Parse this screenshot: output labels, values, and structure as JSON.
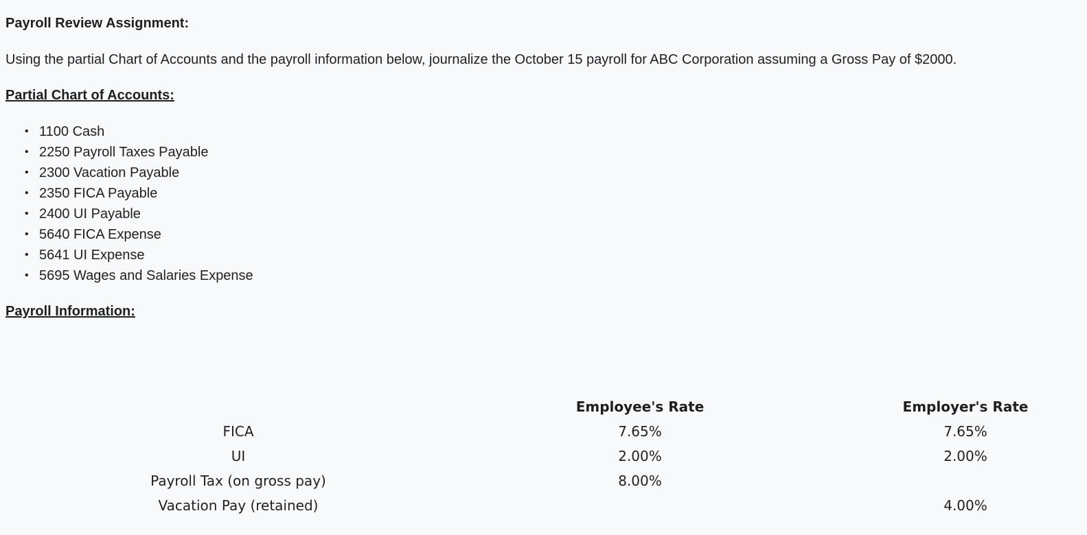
{
  "title": "Payroll Review Assignment:",
  "intro": "Using the partial Chart of Accounts and the payroll information below, journalize the October 15 payroll for ABC Corporation assuming a Gross Pay of $2000.",
  "chart_of_accounts": {
    "heading": "Partial Chart of Accounts:",
    "items": [
      "1100 Cash",
      "2250 Payroll Taxes Payable",
      "2300 Vacation Payable",
      "2350 FICA Payable",
      "2400 UI Payable",
      "5640 FICA Expense",
      "5641 UI Expense",
      "5695 Wages and Salaries Expense"
    ]
  },
  "payroll_info": {
    "heading": "Payroll Information:",
    "columns": [
      "",
      "Employee's Rate",
      "Employer's Rate"
    ],
    "rows": [
      {
        "item": "FICA",
        "employee": "7.65%",
        "employer": "7.65%"
      },
      {
        "item": "UI",
        "employee": "2.00%",
        "employer": "2.00%"
      },
      {
        "item": "Payroll Tax (on gross pay)",
        "employee": "8.00%",
        "employer": ""
      },
      {
        "item": "Vacation Pay (retained)",
        "employee": "",
        "employer": "4.00%"
      }
    ]
  }
}
